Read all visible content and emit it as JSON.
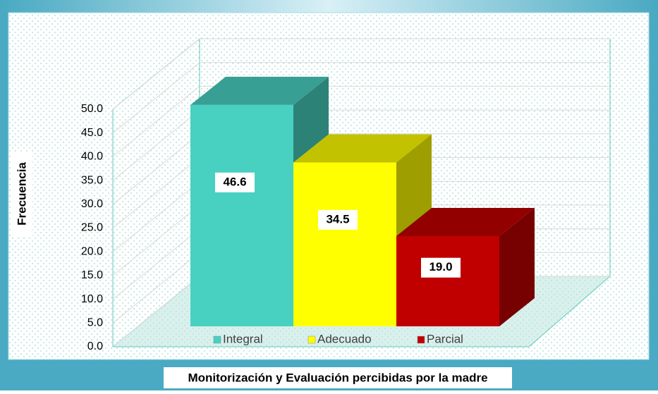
{
  "chart_data": {
    "type": "bar3d",
    "x_label": "Monitorización y Evaluación percibidas por la madre",
    "y_label": "Frecuencia",
    "categories": [
      "Integral",
      "Adecuado",
      "Parcial"
    ],
    "values": [
      46.6,
      34.5,
      19.0
    ],
    "value_labels": [
      "46.6",
      "34.5",
      "19.0"
    ],
    "colors": [
      "#48d1c1",
      "#ffff00",
      "#c00000"
    ],
    "ylim": [
      0,
      50
    ],
    "yticks": [
      {
        "value": 0,
        "label": "0.0"
      },
      {
        "value": 5,
        "label": "5.0"
      },
      {
        "value": 10,
        "label": "10.0"
      },
      {
        "value": 15,
        "label": "15.0"
      },
      {
        "value": 20,
        "label": "20.0"
      },
      {
        "value": 25,
        "label": "25.0"
      },
      {
        "value": 30,
        "label": "30.0"
      },
      {
        "value": 35,
        "label": "35.0"
      },
      {
        "value": 40,
        "label": "40.0"
      },
      {
        "value": 45,
        "label": "45.0"
      },
      {
        "value": 50,
        "label": "50.0"
      }
    ],
    "grid": true,
    "legend": "bottom"
  }
}
